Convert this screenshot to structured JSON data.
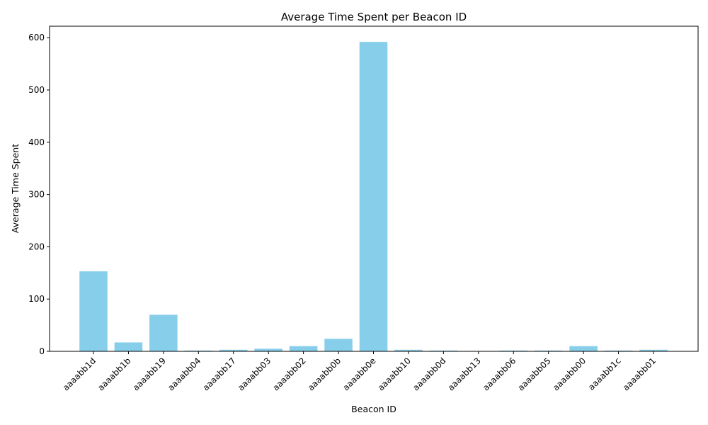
{
  "chart_data": {
    "type": "bar",
    "title": "Average Time Spent per Beacon ID",
    "xlabel": "Beacon ID",
    "ylabel": "Average Time Spent",
    "categories": [
      "aaaabb1d",
      "aaaabb1b",
      "aaaabb19",
      "aaaabb04",
      "aaaabb17",
      "aaaabb03",
      "aaaabb02",
      "aaaabb0b",
      "aaaabb0e",
      "aaaabb10",
      "aaaabb0d",
      "aaaabb13",
      "aaaabb06",
      "aaaabb05",
      "aaaabb00",
      "aaaabb1c",
      "aaaabb01"
    ],
    "values": [
      153,
      17,
      70,
      1.5,
      3,
      5,
      10,
      24,
      592,
      3,
      1.5,
      0.5,
      1.5,
      1.5,
      10,
      1.5,
      3
    ],
    "ylim": [
      0,
      622
    ],
    "yticks": [
      0,
      100,
      200,
      300,
      400,
      500,
      600
    ],
    "bar_color": "#87ceeb",
    "grid": false,
    "legend": "none"
  }
}
